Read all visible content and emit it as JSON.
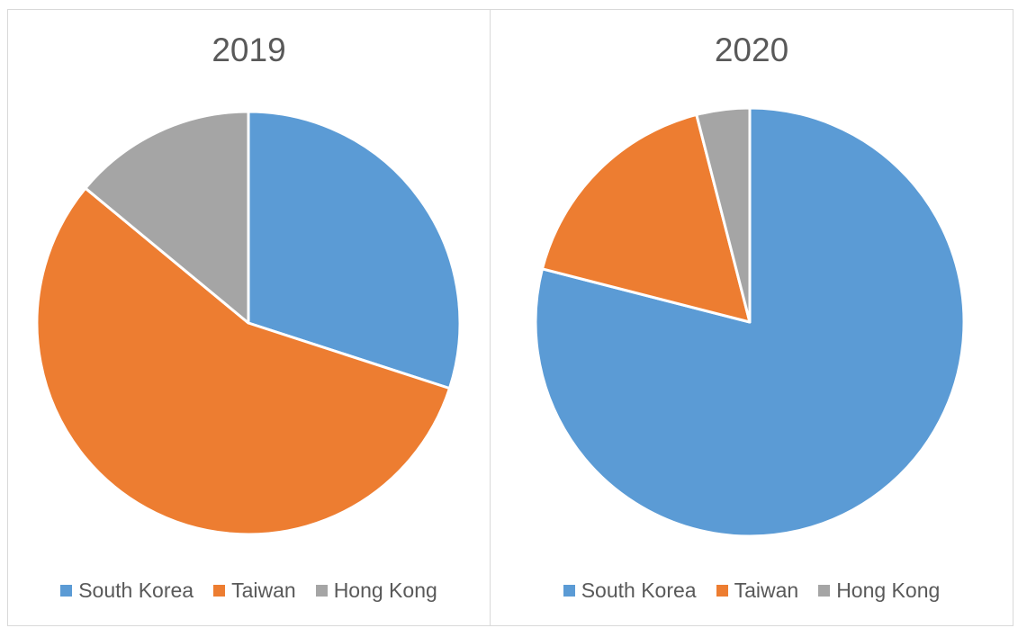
{
  "colors": {
    "South Korea": "#5b9bd5",
    "Taiwan": "#ed7d31",
    "Hong Kong": "#a5a5a5",
    "slice_border": "#ffffff"
  },
  "chart_data": [
    {
      "type": "pie",
      "title": "2019",
      "categories": [
        "South Korea",
        "Taiwan",
        "Hong Kong"
      ],
      "values": [
        30,
        56,
        14
      ],
      "legend_position": "bottom",
      "start_angle": "12 o'clock, clockwise"
    },
    {
      "type": "pie",
      "title": "2020",
      "categories": [
        "South Korea",
        "Taiwan",
        "Hong Kong"
      ],
      "values": [
        79,
        17,
        4
      ],
      "legend_position": "bottom",
      "start_angle": "12 o'clock, clockwise"
    }
  ]
}
